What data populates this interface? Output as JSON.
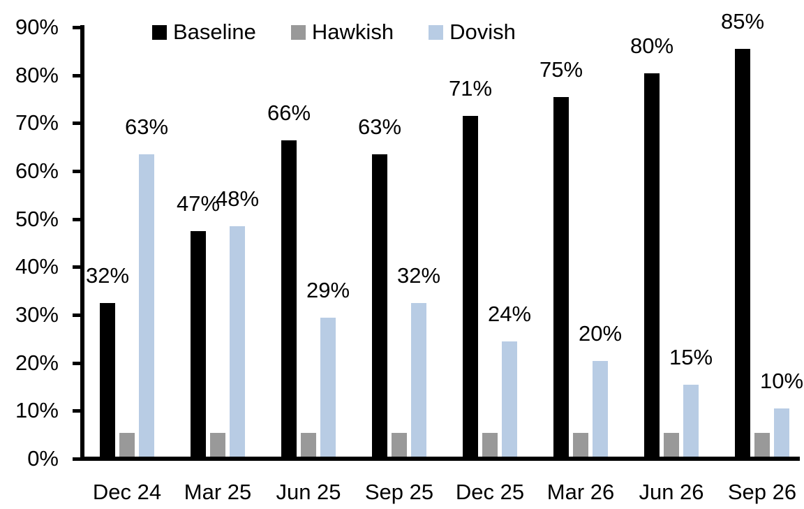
{
  "chart_data": {
    "type": "bar",
    "title": "",
    "categories": [
      "Dec 24",
      "Mar 25",
      "Jun 25",
      "Sep 25",
      "Dec 25",
      "Mar 26",
      "Jun 26",
      "Sep 26"
    ],
    "series": [
      {
        "name": "Baseline",
        "color": "#000000",
        "values": [
          32,
          47,
          66,
          63,
          71,
          75,
          80,
          85
        ],
        "data_labels": [
          "32%",
          "47%",
          "66%",
          "63%",
          "71%",
          "75%",
          "80%",
          "85%"
        ]
      },
      {
        "name": "Hawkish",
        "color": "#999999",
        "values": [
          5,
          5,
          5,
          5,
          5,
          5,
          5,
          5
        ],
        "data_labels": [
          "",
          "",
          "",
          "",
          "",
          "",
          "",
          ""
        ]
      },
      {
        "name": "Dovish",
        "color": "#b8cce4",
        "values": [
          63,
          48,
          29,
          32,
          24,
          20,
          15,
          10
        ],
        "data_labels": [
          "63%",
          "48%",
          "29%",
          "32%",
          "24%",
          "20%",
          "15%",
          "10%"
        ]
      }
    ],
    "xlabel": "",
    "ylabel": "",
    "ylim": [
      0,
      90
    ],
    "ytick_labels": [
      "0%",
      "10%",
      "20%",
      "30%",
      "40%",
      "50%",
      "60%",
      "70%",
      "80%",
      "90%"
    ],
    "grid": false,
    "legend_position": "top",
    "axis_color": "#000000"
  }
}
